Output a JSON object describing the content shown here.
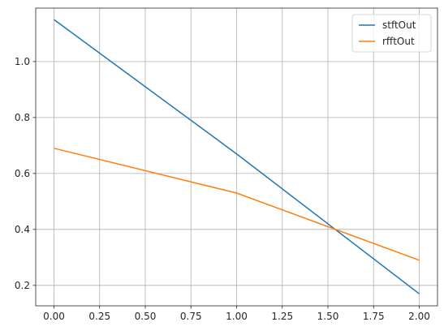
{
  "chart_data": {
    "type": "line",
    "title": "",
    "xlabel": "",
    "ylabel": "",
    "xlim": [
      -0.1,
      2.1
    ],
    "ylim": [
      0.127,
      1.191
    ],
    "grid": true,
    "legend_position": "top-right",
    "x_ticks": [
      "0.00",
      "0.25",
      "0.50",
      "0.75",
      "1.00",
      "1.25",
      "1.50",
      "1.75",
      "2.00"
    ],
    "y_ticks": [
      "0.2",
      "0.4",
      "0.6",
      "0.8",
      "1.0"
    ],
    "series": [
      {
        "name": "stftOut",
        "color": "#1f77b4",
        "x": [
          0,
          1,
          2
        ],
        "y": [
          1.15,
          0.67,
          0.17
        ]
      },
      {
        "name": "rfftOut",
        "color": "#ff7f0e",
        "x": [
          0,
          1,
          2
        ],
        "y": [
          0.69,
          0.53,
          0.29
        ]
      }
    ]
  }
}
